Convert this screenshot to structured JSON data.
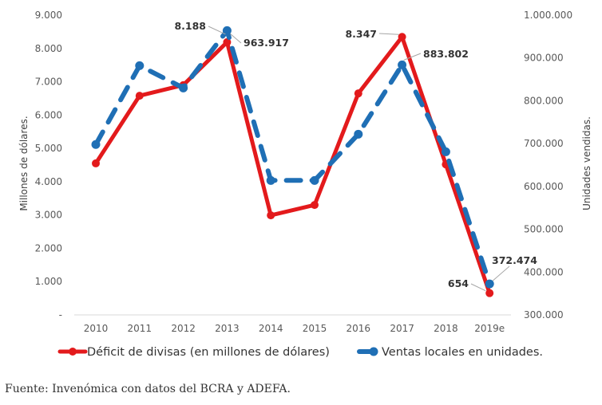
{
  "chart_data": {
    "type": "line",
    "title": "",
    "categories": [
      "2010",
      "2011",
      "2012",
      "2013",
      "2014",
      "2015",
      "2016",
      "2017",
      "2018",
      "2019e"
    ],
    "series": [
      {
        "name": "Déficit de divisas (en millones de dólares)",
        "axis": "left",
        "color": "#e31a1c",
        "style": "solid",
        "values": [
          4550,
          6580,
          6900,
          8188,
          2990,
          3300,
          6650,
          8347,
          4520,
          654
        ],
        "labels": {
          "3": "8.188",
          "7": "8.347",
          "9": "654"
        }
      },
      {
        "name": "Ventas locales en unidades.",
        "axis": "right",
        "color": "#1f6fb5",
        "style": "dashed",
        "values": [
          698000,
          882000,
          830000,
          963917,
          614000,
          614000,
          722000,
          883802,
          681000,
          372474
        ],
        "labels": {
          "3": "963.917",
          "7": "883.802",
          "9": "372.474"
        }
      }
    ],
    "y_left": {
      "label": "Millones de dólares.",
      "range": [
        0,
        9000
      ],
      "ticks": [
        "-",
        "1.000",
        "2.000",
        "3.000",
        "4.000",
        "5.000",
        "6.000",
        "7.000",
        "8.000",
        "9.000"
      ]
    },
    "y_right": {
      "label": "Unidades vendidas.",
      "range": [
        300000,
        1000000
      ],
      "ticks": [
        "300.000",
        "400.000",
        "500.000",
        "600.000",
        "700.000",
        "800.000",
        "900.000",
        "1.000.000"
      ]
    },
    "grid": false,
    "legend": "bottom"
  },
  "source": "Fuente: Invenómica con datos del BCRA y ADEFA."
}
